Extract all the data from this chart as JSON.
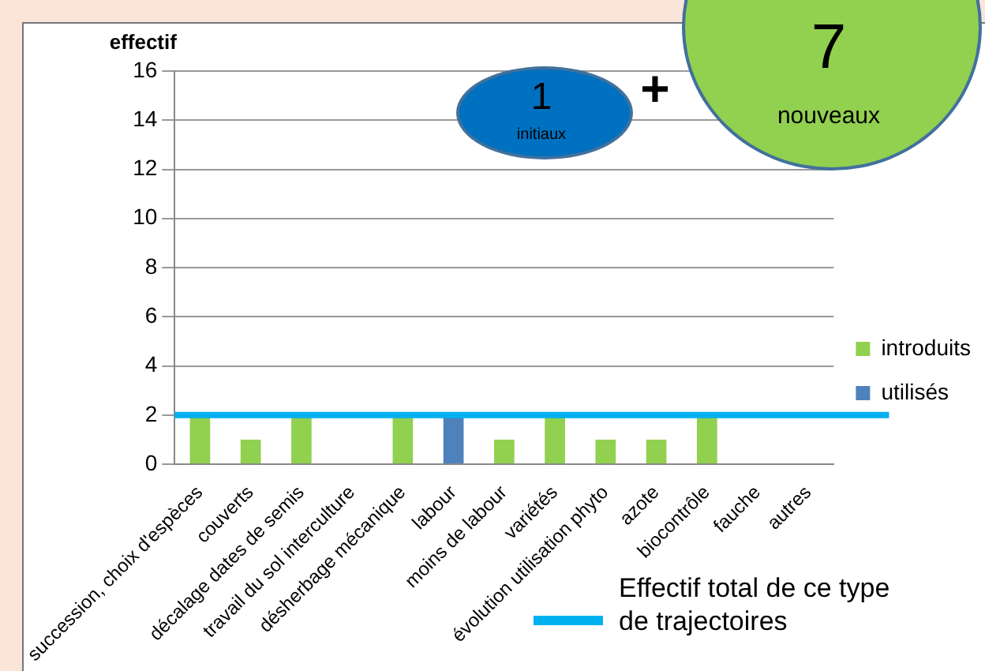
{
  "chart_data": {
    "type": "bar",
    "ylabel": "effectif",
    "categories": [
      "succession, choix d'espèces",
      "couverts",
      "décalage dates de semis",
      "travail du sol interculture",
      "désherbage mécanique",
      "labour",
      "moins de labour",
      "variétés",
      "évolution utilisation phyto",
      "azote",
      "biocontrôle",
      "fauche",
      "autres"
    ],
    "series": [
      {
        "name": "introduits",
        "color": "#92d050",
        "values": [
          2,
          1,
          2,
          0,
          2,
          null,
          1,
          2,
          1,
          1,
          2,
          0,
          0
        ]
      },
      {
        "name": "utilisés",
        "color": "#4f81bd",
        "values": [
          null,
          null,
          null,
          null,
          null,
          2,
          null,
          null,
          null,
          null,
          null,
          null,
          null
        ]
      }
    ],
    "stacked": true,
    "ylim": [
      0,
      16
    ],
    "yticks": [
      0,
      2,
      4,
      6,
      8,
      10,
      12,
      14,
      16
    ],
    "grid": "y",
    "legend": "right",
    "ref_lines": [
      {
        "axis": "y",
        "value": 2,
        "label": "Effectif total de ce type de trajectoires",
        "color": "#00b0f0"
      }
    ],
    "annotations": [
      "1",
      "initiaux",
      "+",
      "7",
      "nouveaux"
    ]
  }
}
